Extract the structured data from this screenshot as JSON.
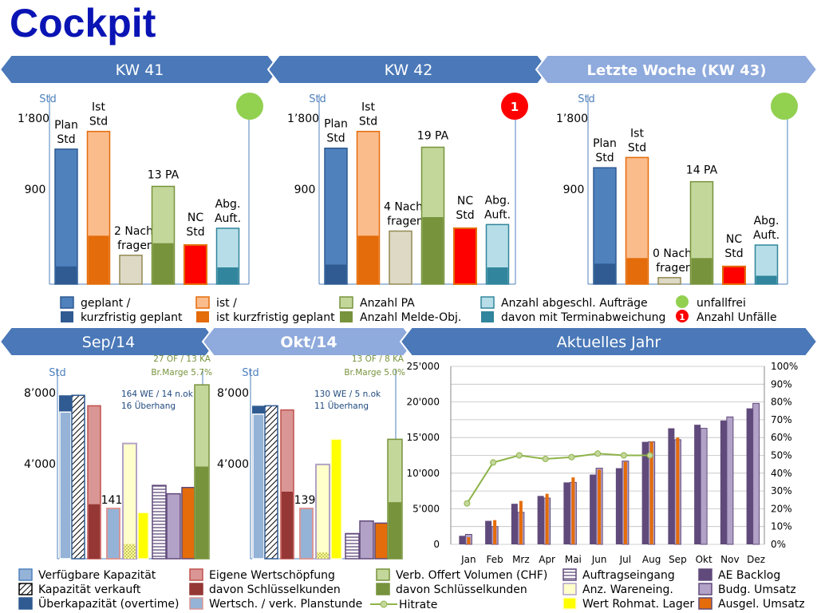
{
  "title": "Cockpit",
  "colors": {
    "banner_dark": "#4a78b8",
    "banner_light": "#8faadc",
    "plan": "#4f81bd",
    "plan_dark": "#2f5b92",
    "ist": "#fbbc8c",
    "ist_dark": "#e46c0a",
    "nachfragen": "#ddd9c4",
    "pa": "#c4d79b",
    "pa_dark": "#77933c",
    "nc": "#ff0000",
    "nc_border": "#e46c0a",
    "abg": "#b7dee8",
    "abg_dark": "#31859c",
    "green_dot": "#92d050",
    "red_dot": "#ff0000",
    "kap": "#95b3d7",
    "kap_dark": "#2f5b92",
    "kap_border": "#4f81bd",
    "ews": "#da9694",
    "ews_dark": "#953735",
    "ews_border": "#c0504d",
    "voluminous": "#c4d79b",
    "purple": "#604a7b",
    "purple_light": "#b3a2c7",
    "yellow": "#ffff00",
    "yellow_light": "#ffffcc",
    "orange": "#e46c0a",
    "line": "#77933c",
    "axis": "#4f81bd",
    "note_green": "#77933c",
    "note_blue": "#1f497d"
  },
  "banners": {
    "kw41": "KW 41",
    "kw42": "KW 42",
    "kw43": "Letzte Woche (KW 43)",
    "sep": "Sep/14",
    "okt": "Okt/14",
    "jahr": "Aktuelles Jahr"
  },
  "weekly_axis": {
    "unit": "Std",
    "ticks": [
      "1’800",
      "900"
    ],
    "ylim": [
      0,
      1800
    ]
  },
  "weekly_labels": {
    "plan": [
      "Plan",
      "Std"
    ],
    "ist": [
      "Ist",
      "Std"
    ],
    "nachfragen_suffix": [
      "Nach-",
      "fragen"
    ],
    "pa_suffix": "PA",
    "nc": [
      "NC",
      "Std"
    ],
    "abg": [
      "Abg.",
      "Auft."
    ]
  },
  "monthly_axis": {
    "unit": "Std",
    "ticks": [
      "8’000",
      "4’000"
    ],
    "ylim": [
      0,
      8000
    ]
  },
  "year_axis": {
    "left_ticks": [
      "25'000",
      "20'000",
      "15'000",
      "10'000",
      "5'000",
      "0"
    ],
    "right_ticks": [
      "100%",
      "90%",
      "80%",
      "70%",
      "60%",
      "50%",
      "40%",
      "30%",
      "20%",
      "10%",
      "0%"
    ],
    "months": [
      "Jan",
      "Feb",
      "Mrz",
      "Apr",
      "Mai",
      "Jun",
      "Jul",
      "Aug",
      "Sep",
      "Okt",
      "Nov",
      "Dez"
    ]
  },
  "chart_data": [
    {
      "type": "bar",
      "title": "KW 41",
      "ylabel": "Std",
      "ylim": [
        0,
        1800
      ],
      "status": "unfallfrei",
      "series": [
        {
          "name": "Plan Std",
          "values": [
            1450
          ],
          "sub": 190
        },
        {
          "name": "Ist Std",
          "values": [
            1640
          ],
          "sub": 520
        },
        {
          "name": "Nachfragen",
          "values": [
            310
          ],
          "count": "2"
        },
        {
          "name": "PA",
          "values": [
            1050
          ],
          "sub": 440,
          "count": "13"
        },
        {
          "name": "NC Std",
          "values": [
            420
          ]
        },
        {
          "name": "Abg. Auft.",
          "values": [
            600
          ],
          "sub": 180
        }
      ]
    },
    {
      "type": "bar",
      "title": "KW 42",
      "ylabel": "Std",
      "ylim": [
        0,
        1800
      ],
      "status": "1",
      "series": [
        {
          "name": "Plan Std",
          "values": [
            1460
          ],
          "sub": 210
        },
        {
          "name": "Ist Std",
          "values": [
            1640
          ],
          "sub": 520
        },
        {
          "name": "Nachfragen",
          "values": [
            570
          ],
          "count": "4"
        },
        {
          "name": "PA",
          "values": [
            1470
          ],
          "sub": 720,
          "count": "19"
        },
        {
          "name": "NC Std",
          "values": [
            600
          ]
        },
        {
          "name": "Abg. Auft.",
          "values": [
            640
          ],
          "sub": 180
        }
      ]
    },
    {
      "type": "bar",
      "title": "Letzte Woche (KW 43)",
      "ylabel": "Std",
      "ylim": [
        0,
        1800
      ],
      "status": "unfallfrei",
      "series": [
        {
          "name": "Plan Std",
          "values": [
            1250
          ],
          "sub": 220
        },
        {
          "name": "Ist Std",
          "values": [
            1360
          ],
          "sub": 280
        },
        {
          "name": "Nachfragen",
          "values": [
            70
          ],
          "count": "0"
        },
        {
          "name": "PA",
          "values": [
            1100
          ],
          "sub": 280,
          "count": "14"
        },
        {
          "name": "NC Std",
          "values": [
            190
          ]
        },
        {
          "name": "Abg. Auft.",
          "values": [
            420
          ],
          "sub": 90
        }
      ]
    },
    {
      "type": "bar",
      "title": "Sep/14",
      "ylabel": "Std",
      "ylim": [
        0,
        8000
      ],
      "notes": [
        "164 WE / 14 n.ok",
        "16 Überhang"
      ],
      "top_note": [
        "27 OF / 13 KA",
        "Br.Marge 5.7%"
      ],
      "kapazitaet": {
        "verfuegbar": 7800,
        "kurz": 7000,
        "verkauft": 7800,
        "ueber": 7800
      },
      "eigene_wertschoepfung": {
        "total": 7300,
        "schluessel": 2600
      },
      "wertschoepfung_planstunde": {
        "value": 2400,
        "label": "141"
      },
      "wareneingang": {
        "anzahl": 5500,
        "rohmat": 2200,
        "rohmat_sub": 700
      },
      "auftragseingang": 3500,
      "ae_backlog_purple": 3100,
      "ausgel_umsatz": 3400,
      "offert_volumen": {
        "total": 8300,
        "schluessel": 4400
      }
    },
    {
      "type": "bar",
      "title": "Okt/14",
      "ylabel": "Std",
      "ylim": [
        0,
        8000
      ],
      "notes": [
        "130 WE / 5 n.ok",
        "11 Überhang"
      ],
      "top_note": [
        "13 OF / 8 KA",
        "Br.Marge 5.0%"
      ],
      "kapazitaet": {
        "verfuegbar": 7300,
        "kurz": 6900,
        "verkauft": 7300,
        "ueber": 7300
      },
      "eigene_wertschoepfung": {
        "total": 7100,
        "schluessel": 3200
      },
      "wertschoepfung_planstunde": {
        "value": 2400,
        "label": "139"
      },
      "wareneingang": {
        "anzahl": 4500,
        "rohmat": 5700,
        "rohmat_sub": 300
      },
      "auftragseingang": 1200,
      "ae_backlog_purple": 1800,
      "ausgel_umsatz": 1700,
      "offert_volumen": {
        "total": 5700,
        "schluessel": 2700
      }
    },
    {
      "type": "bar",
      "title": "Aktuelles Jahr",
      "categories": [
        "Jan",
        "Feb",
        "Mrz",
        "Apr",
        "Mai",
        "Jun",
        "Jul",
        "Aug",
        "Sep",
        "Okt",
        "Nov",
        "Dez"
      ],
      "ylim": [
        0,
        25000
      ],
      "y2lim": [
        0,
        1
      ],
      "series": [
        {
          "name": "Auftragseingang",
          "values": [
            1200,
            3300,
            5700,
            6800,
            8700,
            9800,
            10700,
            14400,
            16300,
            16800,
            17400,
            19100
          ]
        },
        {
          "name": "Budg. Umsatz",
          "values": [
            1400,
            2500,
            4500,
            6500,
            8700,
            10700,
            11700,
            14400,
            14700,
            16300,
            17900,
            19800
          ]
        },
        {
          "name": "Ausgel. Umsatz",
          "values": [
            1000,
            3400,
            6100,
            7100,
            9400,
            10500,
            11600,
            14400,
            15000,
            null,
            null,
            null
          ]
        },
        {
          "name": "Hitrate",
          "values": [
            0.23,
            0.46,
            0.5,
            0.48,
            0.49,
            0.51,
            0.5,
            0.5,
            null,
            null,
            null,
            null
          ]
        }
      ]
    }
  ],
  "legend_top": [
    {
      "id": "plan",
      "lines": [
        "geplant /",
        "kurzfristig geplant"
      ]
    },
    {
      "id": "ist",
      "lines": [
        "ist /",
        "ist kurzfristig geplant"
      ]
    },
    {
      "id": "pa",
      "lines": [
        "Anzahl PA",
        "Anzahl Melde-Obj."
      ]
    },
    {
      "id": "abg",
      "lines": [
        "Anzahl abgeschl. Aufträge",
        "davon mit Terminabweichung"
      ]
    },
    {
      "id": "status",
      "lines": [
        "unfallfrei",
        "Anzahl Unfälle"
      ],
      "badge": "1"
    }
  ],
  "legend_bottom": [
    "Verfügbare Kapazität",
    "Kapazität verkauft",
    "Überkapazität (overtime)",
    "Eigene Wertschöpfung",
    "davon Schlüsselkunden",
    "Wertsch. / verk. Planstunde",
    "Verb. Offert Volumen (CHF)",
    "davon Schlüsselkunden",
    "Hitrate",
    "Auftragseingang",
    "Anz. Wareneing.",
    "Wert Rohmat. Lager",
    "AE Backlog",
    "Budg. Umsatz",
    "Ausgel. Umsatz"
  ]
}
